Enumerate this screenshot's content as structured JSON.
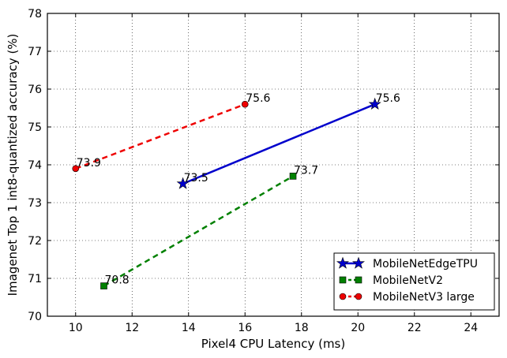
{
  "chart_data": {
    "type": "line",
    "xlabel": "Pixel4 CPU Latency (ms)",
    "ylabel": "Imagenet Top 1 int8-quantized accuracy (%)",
    "xlim": [
      9,
      25
    ],
    "ylim": [
      70,
      78
    ],
    "xticks": [
      10,
      12,
      14,
      16,
      18,
      20,
      22,
      24
    ],
    "yticks": [
      70,
      71,
      72,
      73,
      74,
      75,
      76,
      77,
      78
    ],
    "grid": true,
    "legend_position": "lower-right",
    "series": [
      {
        "name": "MobileNetEdgeTPU",
        "color": "#0000cc",
        "line_style": "solid",
        "marker": "star",
        "x": [
          13.8,
          20.6
        ],
        "y": [
          73.5,
          75.6
        ],
        "labels": [
          "73.5",
          "75.6"
        ]
      },
      {
        "name": "MobileNetV2",
        "color": "#008000",
        "line_style": "dashed",
        "marker": "square",
        "x": [
          11,
          17.7
        ],
        "y": [
          70.8,
          73.7
        ],
        "labels": [
          "70.8",
          "73.7"
        ]
      },
      {
        "name": "MobileNetV3 large",
        "color": "#ee0000",
        "line_style": "dashed",
        "marker": "circle",
        "x": [
          10,
          16
        ],
        "y": [
          73.9,
          75.6
        ],
        "labels": [
          "73.9",
          "75.6"
        ]
      }
    ]
  }
}
